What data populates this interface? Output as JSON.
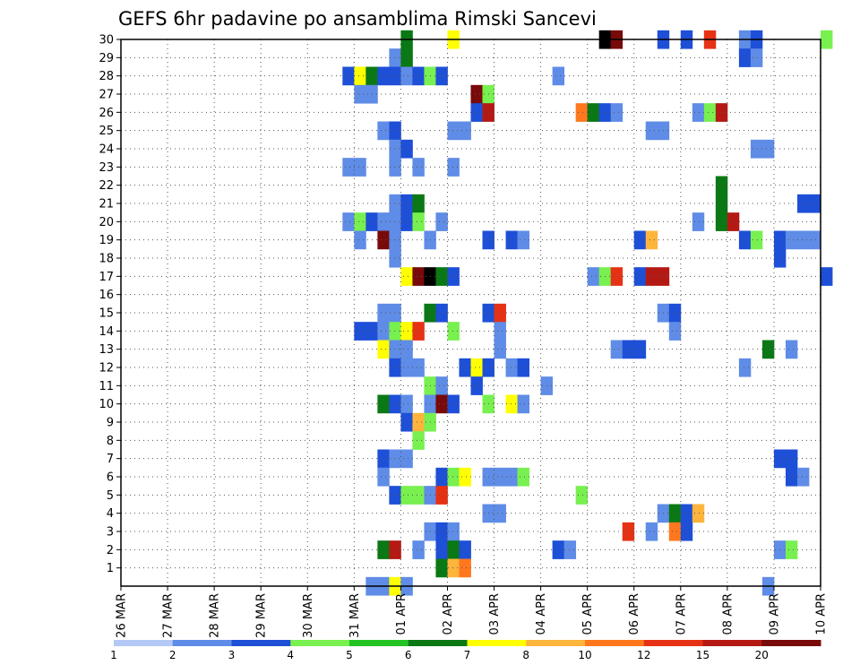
{
  "chart_data": {
    "type": "heatmap",
    "title": "GEFS 6hr padavine po ansamblima Rimski Sancevi",
    "xlabel": "",
    "ylabel": "",
    "x_tick_labels": [
      "26 MAR",
      "27 MAR",
      "28 MAR",
      "29 MAR",
      "30 MAR",
      "31 MAR",
      "01 APR",
      "02 APR",
      "03 APR",
      "04 APR",
      "05 APR",
      "06 APR",
      "07 APR",
      "08 APR",
      "09 APR",
      "10 APR"
    ],
    "y_tick_labels": [
      "1",
      "2",
      "3",
      "4",
      "5",
      "6",
      "7",
      "8",
      "9",
      "10",
      "11",
      "12",
      "13",
      "14",
      "15",
      "16",
      "17",
      "18",
      "19",
      "20",
      "21",
      "22",
      "23",
      "24",
      "25",
      "26",
      "27",
      "28",
      "29",
      "30"
    ],
    "xlim_days": [
      0,
      15
    ],
    "ylim_members": [
      0,
      30
    ],
    "grid": true,
    "legend_position": "bottom",
    "legend": {
      "labels": [
        "1",
        "2",
        "3",
        "4",
        "5",
        "6",
        "7",
        "8",
        "10",
        "12",
        "15",
        "20"
      ],
      "colors": [
        "#b4c8f5",
        "#5f8ce6",
        "#1e4fd7",
        "#78f050",
        "#23c323",
        "#0a7814",
        "#ffff00",
        "#ffb43c",
        "#ff781e",
        "#e63214",
        "#b41914",
        "#780a0a"
      ]
    },
    "cell_step_days": 0.25,
    "cells": [
      [
        11.5,
        30,
        2
      ],
      [
        6,
        30,
        5
      ],
      [
        7,
        30,
        6
      ],
      [
        10.25,
        30,
        12
      ],
      [
        10.5,
        30,
        11
      ],
      [
        12,
        30,
        2
      ],
      [
        12.5,
        30,
        9
      ],
      [
        13.25,
        30,
        1
      ],
      [
        13.5,
        30,
        2
      ],
      [
        15,
        30,
        3
      ],
      [
        5.75,
        29,
        1
      ],
      [
        6,
        29,
        5
      ],
      [
        13.25,
        29,
        2
      ],
      [
        13.5,
        29,
        1
      ],
      [
        4.75,
        28,
        2
      ],
      [
        5,
        28,
        6
      ],
      [
        5.25,
        28,
        5
      ],
      [
        5.5,
        28,
        2
      ],
      [
        5.75,
        28,
        2
      ],
      [
        6,
        28,
        1
      ],
      [
        6.25,
        28,
        2
      ],
      [
        6.5,
        28,
        3
      ],
      [
        6.75,
        28,
        2
      ],
      [
        9.25,
        28,
        1
      ],
      [
        5,
        27,
        1
      ],
      [
        5.25,
        27,
        1
      ],
      [
        7.5,
        27,
        11
      ],
      [
        7.75,
        27,
        3
      ],
      [
        7.5,
        26,
        2
      ],
      [
        7.75,
        26,
        10
      ],
      [
        9.75,
        26,
        8
      ],
      [
        10,
        26,
        5
      ],
      [
        10.25,
        26,
        2
      ],
      [
        10.5,
        26,
        1
      ],
      [
        12.25,
        26,
        1
      ],
      [
        12.5,
        26,
        3
      ],
      [
        12.75,
        26,
        10
      ],
      [
        5.5,
        25,
        1
      ],
      [
        5.75,
        25,
        2
      ],
      [
        7,
        25,
        1
      ],
      [
        7.25,
        25,
        1
      ],
      [
        11.25,
        25,
        1
      ],
      [
        11.5,
        25,
        1
      ],
      [
        5.75,
        24,
        1
      ],
      [
        6,
        24,
        2
      ],
      [
        13.5,
        24,
        1
      ],
      [
        13.75,
        24,
        1
      ],
      [
        4.75,
        23,
        1
      ],
      [
        5,
        23,
        1
      ],
      [
        5.75,
        23,
        1
      ],
      [
        6.25,
        23,
        1
      ],
      [
        7,
        23,
        1
      ],
      [
        12.75,
        22,
        5
      ],
      [
        5.75,
        21,
        1
      ],
      [
        6,
        21,
        2
      ],
      [
        6.25,
        21,
        5
      ],
      [
        12.75,
        21,
        5
      ],
      [
        14.5,
        21,
        2
      ],
      [
        14.75,
        21,
        2
      ],
      [
        4.75,
        20,
        1
      ],
      [
        5,
        20,
        3
      ],
      [
        5.25,
        20,
        2
      ],
      [
        5.5,
        20,
        1
      ],
      [
        5.75,
        20,
        1
      ],
      [
        6,
        20,
        2
      ],
      [
        6.25,
        20,
        3
      ],
      [
        6.75,
        20,
        1
      ],
      [
        12.25,
        20,
        1
      ],
      [
        12.75,
        20,
        5
      ],
      [
        13,
        20,
        10
      ],
      [
        5,
        19,
        1
      ],
      [
        5.5,
        19,
        11
      ],
      [
        5.75,
        19,
        1
      ],
      [
        6.5,
        19,
        1
      ],
      [
        7.75,
        19,
        2
      ],
      [
        8.25,
        19,
        2
      ],
      [
        8.5,
        19,
        1
      ],
      [
        11,
        19,
        2
      ],
      [
        11.25,
        19,
        7
      ],
      [
        13.25,
        19,
        2
      ],
      [
        13.5,
        19,
        3
      ],
      [
        14,
        19,
        2
      ],
      [
        14.25,
        19,
        1
      ],
      [
        14.5,
        19,
        1
      ],
      [
        14.75,
        19,
        1
      ],
      [
        5.75,
        18,
        1
      ],
      [
        14,
        18,
        2
      ],
      [
        6,
        17,
        6
      ],
      [
        6.25,
        17,
        11
      ],
      [
        6.5,
        17,
        12
      ],
      [
        6.75,
        17,
        5
      ],
      [
        7,
        17,
        2
      ],
      [
        10,
        17,
        1
      ],
      [
        10.25,
        17,
        3
      ],
      [
        10.5,
        17,
        9
      ],
      [
        11,
        17,
        2
      ],
      [
        11.25,
        17,
        10
      ],
      [
        11.5,
        17,
        10
      ],
      [
        15,
        17,
        2
      ],
      [
        5.5,
        15,
        1
      ],
      [
        5.75,
        15,
        1
      ],
      [
        6.5,
        15,
        5
      ],
      [
        6.75,
        15,
        2
      ],
      [
        7.75,
        15,
        2
      ],
      [
        8,
        15,
        9
      ],
      [
        11.5,
        15,
        1
      ],
      [
        11.75,
        15,
        2
      ],
      [
        5,
        14,
        2
      ],
      [
        5.25,
        14,
        2
      ],
      [
        5.5,
        14,
        1
      ],
      [
        5.75,
        14,
        3
      ],
      [
        6,
        14,
        6
      ],
      [
        6.25,
        14,
        9
      ],
      [
        7,
        14,
        3
      ],
      [
        8,
        14,
        1
      ],
      [
        11.75,
        14,
        1
      ],
      [
        5.5,
        13,
        6
      ],
      [
        5.75,
        13,
        1
      ],
      [
        6,
        13,
        1
      ],
      [
        8,
        13,
        1
      ],
      [
        10.5,
        13,
        1
      ],
      [
        10.75,
        13,
        2
      ],
      [
        11,
        13,
        2
      ],
      [
        13.75,
        13,
        5
      ],
      [
        14.25,
        13,
        1
      ],
      [
        5.75,
        12,
        2
      ],
      [
        6,
        12,
        1
      ],
      [
        6.25,
        12,
        1
      ],
      [
        7.25,
        12,
        2
      ],
      [
        7.5,
        12,
        6
      ],
      [
        7.75,
        12,
        2
      ],
      [
        8.25,
        12,
        1
      ],
      [
        8.5,
        12,
        2
      ],
      [
        13.25,
        12,
        1
      ],
      [
        6.5,
        11,
        3
      ],
      [
        6.75,
        11,
        1
      ],
      [
        7.5,
        11,
        2
      ],
      [
        9,
        11,
        1
      ],
      [
        5.5,
        10,
        5
      ],
      [
        5.75,
        10,
        2
      ],
      [
        6,
        10,
        1
      ],
      [
        6.5,
        10,
        1
      ],
      [
        6.75,
        10,
        11
      ],
      [
        7,
        10,
        2
      ],
      [
        7.75,
        10,
        3
      ],
      [
        8.25,
        10,
        6
      ],
      [
        8.5,
        10,
        1
      ],
      [
        6,
        9,
        2
      ],
      [
        6.25,
        9,
        7
      ],
      [
        6.5,
        9,
        3
      ],
      [
        6.25,
        8,
        3
      ],
      [
        5.5,
        7,
        2
      ],
      [
        5.75,
        7,
        1
      ],
      [
        6,
        7,
        1
      ],
      [
        14,
        7,
        2
      ],
      [
        14.25,
        7,
        2
      ],
      [
        5.5,
        6,
        1
      ],
      [
        6.75,
        6,
        2
      ],
      [
        7,
        6,
        3
      ],
      [
        7.25,
        6,
        6
      ],
      [
        7.75,
        6,
        1
      ],
      [
        8,
        6,
        1
      ],
      [
        8.25,
        6,
        1
      ],
      [
        8.5,
        6,
        3
      ],
      [
        14.25,
        6,
        2
      ],
      [
        14.5,
        6,
        1
      ],
      [
        5.75,
        5,
        2
      ],
      [
        6,
        5,
        3
      ],
      [
        6.25,
        5,
        3
      ],
      [
        6.5,
        5,
        1
      ],
      [
        6.75,
        5,
        9
      ],
      [
        9.75,
        5,
        3
      ],
      [
        7.75,
        4,
        1
      ],
      [
        8,
        4,
        1
      ],
      [
        11.5,
        4,
        1
      ],
      [
        11.75,
        4,
        5
      ],
      [
        12,
        4,
        2
      ],
      [
        12.25,
        4,
        7
      ],
      [
        6.5,
        3,
        1
      ],
      [
        6.75,
        3,
        2
      ],
      [
        7,
        3,
        1
      ],
      [
        10.75,
        3,
        9
      ],
      [
        11.25,
        3,
        1
      ],
      [
        11.75,
        3,
        8
      ],
      [
        12,
        3,
        2
      ],
      [
        5.5,
        2,
        5
      ],
      [
        5.75,
        2,
        10
      ],
      [
        6.25,
        2,
        1
      ],
      [
        6.75,
        2,
        2
      ],
      [
        7,
        2,
        5
      ],
      [
        7.25,
        2,
        2
      ],
      [
        9.25,
        2,
        2
      ],
      [
        9.5,
        2,
        1
      ],
      [
        14,
        2,
        1
      ],
      [
        14.25,
        2,
        3
      ],
      [
        6.75,
        1,
        5
      ],
      [
        7,
        1,
        7
      ],
      [
        7.25,
        1,
        8
      ],
      [
        5.25,
        0,
        1
      ],
      [
        5.5,
        0,
        1
      ],
      [
        5.75,
        0,
        6
      ],
      [
        6,
        0,
        1
      ],
      [
        13.75,
        0,
        1
      ]
    ]
  }
}
